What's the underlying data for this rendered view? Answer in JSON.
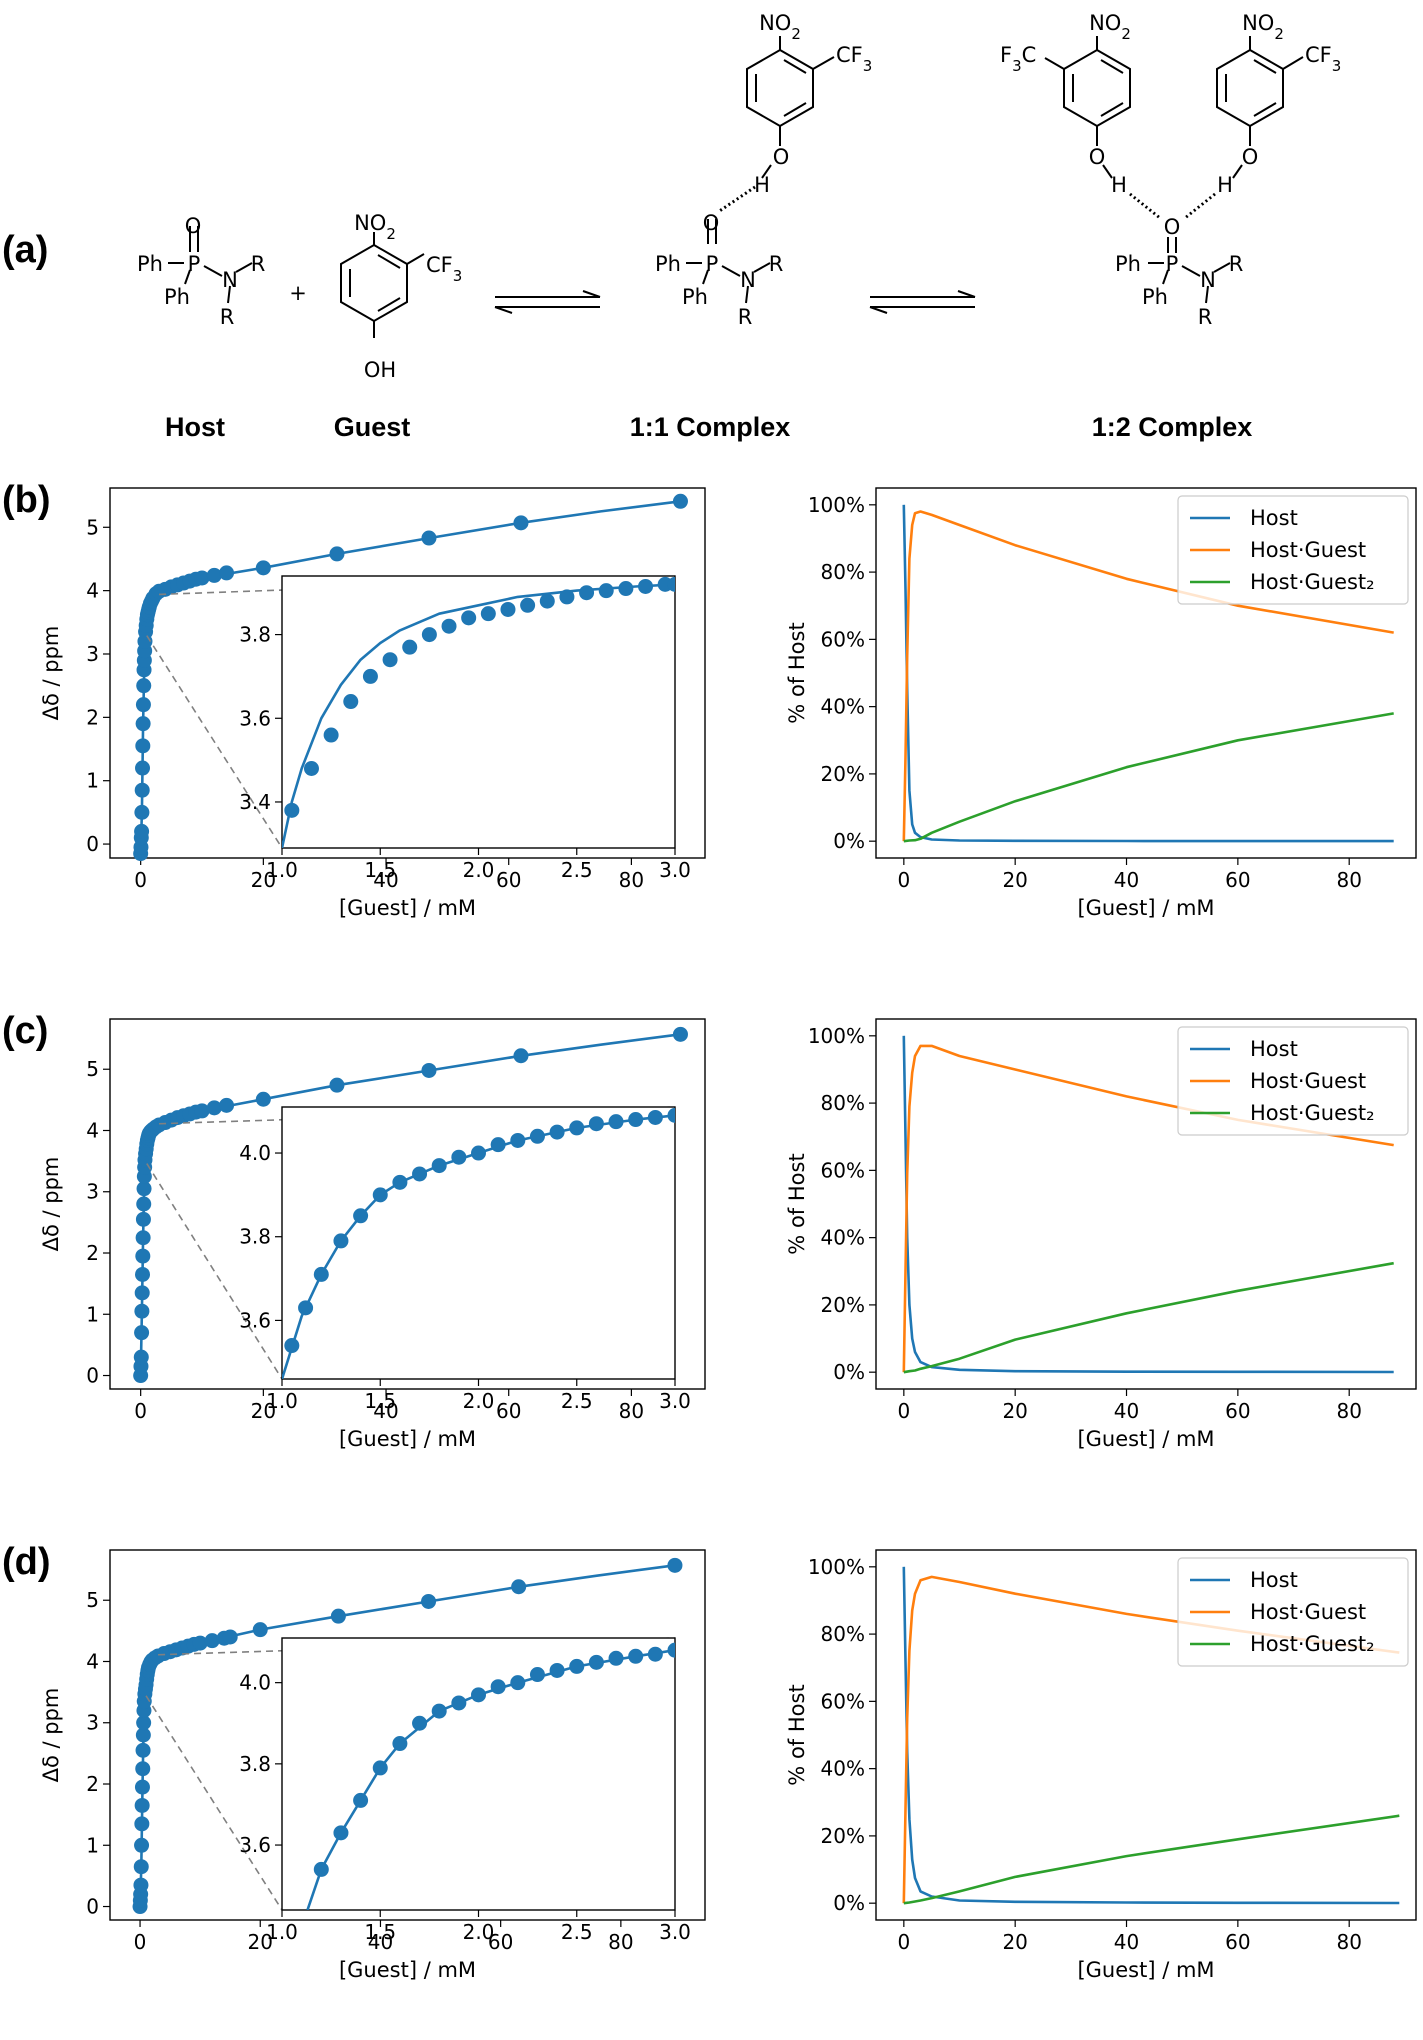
{
  "scheme": {
    "panel_label": "(a)",
    "labels": {
      "host": "Host",
      "guest": "Guest",
      "complex11": "1:1 Complex",
      "complex12": "1:2 Complex"
    },
    "plus": "+",
    "atoms": {
      "ph": "Ph",
      "p": "P",
      "o": "O",
      "n": "N",
      "r": "R",
      "h": "H",
      "oh": "OH",
      "no2": "NO2",
      "cf3": "CF3",
      "f3c": "F3C"
    }
  },
  "colors": {
    "host": "#1f77b4",
    "hostguest": "#ff7f0e",
    "hostguest2": "#2ca02c",
    "zoom_line": "#808080"
  },
  "rows": [
    {
      "label": "(b)"
    },
    {
      "label": "(c)"
    },
    {
      "label": "(d)"
    }
  ],
  "chart_data": [
    {
      "type": "scatter",
      "panel": "(b) left",
      "xlabel": "[Guest] / mM",
      "ylabel": "Δδ / ppm",
      "xlim": [
        -5,
        92
      ],
      "ylim": [
        -0.22,
        5.62
      ],
      "xticks": [
        0,
        20,
        40,
        60,
        80
      ],
      "yticks": [
        0,
        1,
        2,
        3,
        4,
        5
      ],
      "points": {
        "x": [
          0,
          0.05,
          0.1,
          0.15,
          0.2,
          0.25,
          0.3,
          0.35,
          0.4,
          0.45,
          0.5,
          0.55,
          0.6,
          0.65,
          0.7,
          0.8,
          0.9,
          1.0,
          1.1,
          1.2,
          1.3,
          1.4,
          1.6,
          1.8,
          2.0,
          2.5,
          3.0,
          4,
          5,
          6,
          7,
          8,
          9,
          10,
          12,
          14,
          20,
          32,
          47,
          62,
          88
        ],
        "y": [
          -0.15,
          -0.05,
          0.1,
          0.2,
          0.5,
          0.85,
          1.2,
          1.55,
          1.9,
          2.2,
          2.5,
          2.75,
          2.9,
          3.05,
          3.2,
          3.35,
          3.45,
          3.55,
          3.62,
          3.66,
          3.7,
          3.74,
          3.8,
          3.84,
          3.88,
          3.95,
          3.99,
          4.02,
          4.06,
          4.09,
          4.12,
          4.15,
          4.18,
          4.2,
          4.24,
          4.28,
          4.36,
          4.58,
          4.83,
          5.07,
          5.41
        ]
      },
      "fit": {
        "x": [
          0,
          0.2,
          0.4,
          0.6,
          0.8,
          1.0,
          1.2,
          1.5,
          2.0,
          3.0,
          5,
          10,
          20,
          32,
          47,
          62,
          75,
          88
        ],
        "y": [
          -0.15,
          0.5,
          1.9,
          2.9,
          3.35,
          3.55,
          3.66,
          3.78,
          3.88,
          3.99,
          4.06,
          4.2,
          4.36,
          4.58,
          4.83,
          5.07,
          5.25,
          5.41
        ]
      },
      "inset": {
        "xlim": [
          1.0,
          3.0
        ],
        "ylim": [
          3.29,
          3.94
        ],
        "xticks": [
          1.0,
          1.5,
          2.0,
          2.5,
          3.0
        ],
        "yticks": [
          3.4,
          3.6,
          3.8
        ],
        "points": {
          "x": [
            1.05,
            1.15,
            1.25,
            1.35,
            1.45,
            1.55,
            1.65,
            1.75,
            1.85,
            1.95,
            2.05,
            2.15,
            2.25,
            2.35,
            2.45,
            2.55,
            2.65,
            2.75,
            2.85,
            2.95,
            3.0
          ],
          "y": [
            3.38,
            3.48,
            3.56,
            3.64,
            3.7,
            3.74,
            3.77,
            3.8,
            3.82,
            3.84,
            3.85,
            3.86,
            3.87,
            3.88,
            3.89,
            3.9,
            3.905,
            3.91,
            3.915,
            3.92,
            3.92
          ]
        },
        "fit": {
          "x": [
            1.0,
            1.05,
            1.1,
            1.2,
            1.3,
            1.4,
            1.5,
            1.6,
            1.8,
            2.0,
            2.2,
            2.5,
            2.8,
            3.0
          ],
          "y": [
            3.29,
            3.4,
            3.48,
            3.6,
            3.68,
            3.74,
            3.78,
            3.81,
            3.85,
            3.87,
            3.89,
            3.905,
            3.915,
            3.92
          ]
        }
      }
    },
    {
      "type": "line",
      "panel": "(b) right",
      "xlabel": "[Guest] / mM",
      "ylabel": "% of Host",
      "xlim": [
        -5,
        92
      ],
      "ylim": [
        -5,
        105
      ],
      "xticks": [
        0,
        20,
        40,
        60,
        80
      ],
      "yticks": [
        0,
        20,
        40,
        60,
        80,
        100
      ],
      "ytick_labels": [
        "0%",
        "20%",
        "40%",
        "60%",
        "80%",
        "100%"
      ],
      "legend_position": "upper right",
      "series": [
        {
          "name": "Host",
          "color": "#1f77b4",
          "x": [
            0,
            0.3,
            0.6,
            1.0,
            1.5,
            2.0,
            3.0,
            5.0,
            10,
            20,
            40,
            60,
            88
          ],
          "y": [
            100,
            75,
            45,
            15,
            5,
            2.5,
            1.2,
            0.5,
            0.2,
            0.1,
            0.05,
            0.03,
            0.02
          ]
        },
        {
          "name": "Host·Guest",
          "color": "#ff7f0e",
          "x": [
            0,
            0.3,
            0.6,
            1.0,
            1.5,
            2.0,
            3.0,
            5.0,
            10,
            20,
            40,
            60,
            88
          ],
          "y": [
            0,
            25,
            55,
            84,
            94,
            97.5,
            98,
            97,
            94,
            88,
            78,
            70,
            62
          ]
        },
        {
          "name": "Host·Guest₂",
          "color": "#2ca02c",
          "x": [
            0,
            1,
            2,
            3,
            5,
            10,
            20,
            40,
            60,
            88
          ],
          "y": [
            0,
            0.2,
            0.3,
            0.7,
            2.5,
            5.8,
            11.9,
            22,
            30,
            38
          ]
        }
      ]
    },
    {
      "type": "scatter",
      "panel": "(c) left",
      "xlabel": "[Guest] / mM",
      "ylabel": "Δδ / ppm",
      "xlim": [
        -5,
        92
      ],
      "ylim": [
        -0.22,
        5.82
      ],
      "xticks": [
        0,
        20,
        40,
        60,
        80
      ],
      "yticks": [
        0,
        1,
        2,
        3,
        4,
        5
      ],
      "points": {
        "x": [
          0,
          0.05,
          0.1,
          0.15,
          0.2,
          0.25,
          0.3,
          0.35,
          0.4,
          0.45,
          0.5,
          0.55,
          0.6,
          0.65,
          0.7,
          0.8,
          0.9,
          1.0,
          1.1,
          1.2,
          1.3,
          1.4,
          1.6,
          1.8,
          2.0,
          2.5,
          3.0,
          4,
          5,
          6,
          7,
          8,
          9,
          10,
          12,
          14,
          20,
          32,
          47,
          62,
          88
        ],
        "y": [
          0,
          0.15,
          0.3,
          0.7,
          1.05,
          1.35,
          1.65,
          1.95,
          2.25,
          2.55,
          2.8,
          3.05,
          3.25,
          3.4,
          3.52,
          3.62,
          3.7,
          3.78,
          3.84,
          3.88,
          3.92,
          3.95,
          3.98,
          4.0,
          4.02,
          4.06,
          4.09,
          4.13,
          4.17,
          4.21,
          4.24,
          4.27,
          4.3,
          4.32,
          4.37,
          4.41,
          4.51,
          4.74,
          4.98,
          5.22,
          5.57
        ]
      },
      "fit": {
        "x": [
          0,
          0.2,
          0.4,
          0.6,
          0.8,
          1.0,
          1.2,
          1.5,
          2.0,
          3.0,
          5,
          10,
          20,
          32,
          47,
          62,
          75,
          88
        ],
        "y": [
          0,
          1.05,
          2.25,
          3.25,
          3.62,
          3.78,
          3.88,
          3.96,
          4.02,
          4.09,
          4.17,
          4.32,
          4.51,
          4.74,
          4.98,
          5.22,
          5.4,
          5.57
        ]
      },
      "inset": {
        "xlim": [
          1.0,
          3.0
        ],
        "ylim": [
          3.46,
          4.11
        ],
        "xticks": [
          1.0,
          1.5,
          2.0,
          2.5,
          3.0
        ],
        "yticks": [
          3.6,
          3.8,
          4.0
        ],
        "points": {
          "x": [
            1.05,
            1.12,
            1.2,
            1.3,
            1.4,
            1.5,
            1.6,
            1.7,
            1.8,
            1.9,
            2.0,
            2.1,
            2.2,
            2.3,
            2.4,
            2.5,
            2.6,
            2.7,
            2.8,
            2.9,
            3.0
          ],
          "y": [
            3.54,
            3.63,
            3.71,
            3.79,
            3.85,
            3.9,
            3.93,
            3.95,
            3.97,
            3.99,
            4.0,
            4.02,
            4.03,
            4.04,
            4.05,
            4.06,
            4.07,
            4.075,
            4.08,
            4.085,
            4.09
          ]
        },
        "fit": {
          "x": [
            1.0,
            1.1,
            1.2,
            1.3,
            1.4,
            1.5,
            1.6,
            1.8,
            2.0,
            2.2,
            2.5,
            2.8,
            3.0
          ],
          "y": [
            3.46,
            3.61,
            3.71,
            3.79,
            3.85,
            3.9,
            3.93,
            3.97,
            4.0,
            4.03,
            4.06,
            4.08,
            4.09
          ]
        }
      }
    },
    {
      "type": "line",
      "panel": "(c) right",
      "xlabel": "[Guest] / mM",
      "ylabel": "% of Host",
      "xlim": [
        -5,
        92
      ],
      "ylim": [
        -5,
        105
      ],
      "xticks": [
        0,
        20,
        40,
        60,
        80
      ],
      "yticks": [
        0,
        20,
        40,
        60,
        80,
        100
      ],
      "ytick_labels": [
        "0%",
        "20%",
        "40%",
        "60%",
        "80%",
        "100%"
      ],
      "legend_position": "upper right",
      "series": [
        {
          "name": "Host",
          "color": "#1f77b4",
          "x": [
            0,
            0.3,
            0.6,
            1.0,
            1.5,
            2.0,
            3.0,
            5.0,
            10,
            20,
            40,
            60,
            88
          ],
          "y": [
            100,
            70,
            40,
            20,
            10,
            6,
            3,
            1.5,
            0.7,
            0.3,
            0.15,
            0.1,
            0.05
          ]
        },
        {
          "name": "Host·Guest",
          "color": "#ff7f0e",
          "x": [
            0,
            0.3,
            0.6,
            1.0,
            1.5,
            2.0,
            3.0,
            5.0,
            10,
            20,
            40,
            60,
            88
          ],
          "y": [
            0,
            30,
            59,
            79,
            89,
            94,
            97,
            97,
            94,
            90,
            82,
            75,
            67.5
          ]
        },
        {
          "name": "Host·Guest₂",
          "color": "#2ca02c",
          "x": [
            0,
            1,
            2,
            3,
            5,
            10,
            20,
            40,
            60,
            88
          ],
          "y": [
            0,
            0.3,
            0.5,
            1.0,
            1.8,
            4.0,
            9.7,
            17.5,
            24.2,
            32.4
          ]
        }
      ]
    },
    {
      "type": "scatter",
      "panel": "(d) left",
      "xlabel": "[Guest] / mM",
      "ylabel": "Δδ / ppm",
      "xlim": [
        -5,
        94
      ],
      "ylim": [
        -0.22,
        5.82
      ],
      "xticks": [
        0,
        20,
        40,
        60,
        80
      ],
      "yticks": [
        0,
        1,
        2,
        3,
        4,
        5
      ],
      "points": {
        "x": [
          0,
          0.05,
          0.1,
          0.15,
          0.2,
          0.25,
          0.3,
          0.35,
          0.4,
          0.45,
          0.5,
          0.55,
          0.6,
          0.65,
          0.7,
          0.8,
          0.9,
          1.0,
          1.1,
          1.2,
          1.3,
          1.4,
          1.6,
          1.8,
          2.0,
          2.5,
          3.0,
          4,
          5,
          6,
          7,
          8,
          9,
          10,
          12,
          14,
          15,
          20,
          33,
          48,
          63,
          89
        ],
        "y": [
          0,
          0.1,
          0.2,
          0.35,
          0.65,
          1.0,
          1.35,
          1.65,
          1.95,
          2.25,
          2.55,
          2.8,
          3.0,
          3.2,
          3.35,
          3.47,
          3.55,
          3.62,
          3.71,
          3.79,
          3.85,
          3.9,
          3.95,
          3.99,
          4.02,
          4.06,
          4.09,
          4.13,
          4.16,
          4.19,
          4.22,
          4.25,
          4.28,
          4.3,
          4.34,
          4.38,
          4.4,
          4.52,
          4.74,
          4.98,
          5.22,
          5.57
        ]
      },
      "fit": {
        "x": [
          0,
          0.2,
          0.4,
          0.6,
          0.8,
          1.0,
          1.2,
          1.5,
          2.0,
          3.0,
          5,
          10,
          20,
          33,
          48,
          63,
          76,
          89
        ],
        "y": [
          0,
          0.65,
          1.95,
          3.0,
          3.47,
          3.62,
          3.79,
          3.92,
          4.02,
          4.09,
          4.16,
          4.3,
          4.52,
          4.74,
          4.98,
          5.22,
          5.4,
          5.57
        ]
      },
      "inset": {
        "xlim": [
          1.0,
          3.0
        ],
        "ylim": [
          3.44,
          4.11
        ],
        "xticks": [
          1.0,
          1.5,
          2.0,
          2.5,
          3.0
        ],
        "yticks": [
          3.6,
          3.8,
          4.0
        ],
        "points": {
          "x": [
            1.2,
            1.3,
            1.4,
            1.5,
            1.6,
            1.7,
            1.8,
            1.9,
            2.0,
            2.1,
            2.2,
            2.3,
            2.4,
            2.5,
            2.6,
            2.7,
            2.8,
            2.9,
            3.0
          ],
          "y": [
            3.54,
            3.63,
            3.71,
            3.79,
            3.85,
            3.9,
            3.93,
            3.95,
            3.97,
            3.99,
            4.0,
            4.02,
            4.03,
            4.04,
            4.05,
            4.06,
            4.065,
            4.07,
            4.08
          ]
        },
        "fit": {
          "x": [
            1.13,
            1.2,
            1.3,
            1.4,
            1.5,
            1.6,
            1.8,
            2.0,
            2.2,
            2.5,
            2.8,
            3.0
          ],
          "y": [
            3.44,
            3.54,
            3.63,
            3.71,
            3.79,
            3.85,
            3.93,
            3.97,
            4.0,
            4.04,
            4.065,
            4.08
          ]
        }
      }
    },
    {
      "type": "line",
      "panel": "(d) right",
      "xlabel": "[Guest] / mM",
      "ylabel": "% of Host",
      "xlim": [
        -5,
        92
      ],
      "ylim": [
        -5,
        105
      ],
      "xticks": [
        0,
        20,
        40,
        60,
        80
      ],
      "yticks": [
        0,
        20,
        40,
        60,
        80,
        100
      ],
      "ytick_labels": [
        "0%",
        "20%",
        "40%",
        "60%",
        "80%",
        "100%"
      ],
      "legend_position": "upper right",
      "series": [
        {
          "name": "Host",
          "color": "#1f77b4",
          "x": [
            0,
            0.3,
            0.6,
            1.0,
            1.5,
            2.0,
            3.0,
            5.0,
            10,
            20,
            40,
            60,
            89
          ],
          "y": [
            100,
            72,
            45,
            25,
            13,
            7.5,
            3.5,
            2,
            0.8,
            0.4,
            0.2,
            0.1,
            0.05
          ]
        },
        {
          "name": "Host·Guest",
          "color": "#ff7f0e",
          "x": [
            0,
            0.3,
            0.6,
            1.0,
            1.5,
            2.0,
            3.0,
            5.0,
            10,
            20,
            40,
            60,
            89
          ],
          "y": [
            0,
            28,
            55,
            75,
            87,
            92,
            96,
            97,
            95.5,
            92,
            86,
            81,
            74.5
          ]
        },
        {
          "name": "Host·Guest₂",
          "color": "#2ca02c",
          "x": [
            0,
            1,
            2,
            3,
            5,
            10,
            20,
            40,
            60,
            89
          ],
          "y": [
            0,
            0.2,
            0.5,
            0.8,
            1.5,
            3.5,
            7.8,
            14,
            19,
            26
          ]
        }
      ]
    }
  ]
}
